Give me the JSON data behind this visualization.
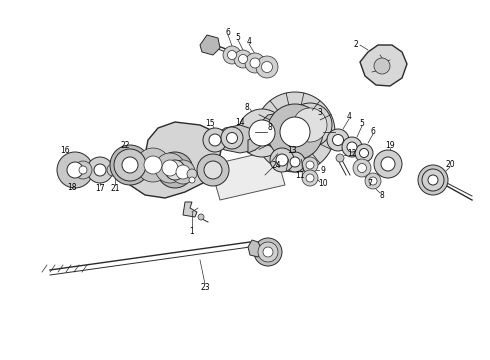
{
  "bg": "#ffffff",
  "lc": "#2a2a2a",
  "fig_w": 4.9,
  "fig_h": 3.6,
  "dpi": 100
}
